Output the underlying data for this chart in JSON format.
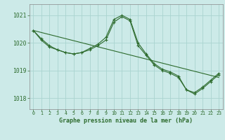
{
  "title": "Graphe pression niveau de la mer (hPa)",
  "background_color": "#cceae8",
  "grid_color": "#aad4d0",
  "line_color": "#2d6b2d",
  "ylim": [
    1017.6,
    1021.4
  ],
  "yticks": [
    1018,
    1019,
    1020,
    1021
  ],
  "xlim": [
    -0.5,
    23.5
  ],
  "xticks": [
    0,
    1,
    2,
    3,
    4,
    5,
    6,
    7,
    8,
    9,
    10,
    11,
    12,
    13,
    14,
    15,
    16,
    17,
    18,
    19,
    20,
    21,
    22,
    23
  ],
  "series": [
    {
      "x": [
        0,
        23
      ],
      "y": [
        1020.45,
        1018.75
      ],
      "marker": false
    },
    {
      "x": [
        0,
        1,
        2,
        3,
        4,
        5,
        6,
        7,
        8,
        9,
        10,
        11,
        12,
        13,
        14,
        15,
        16,
        17,
        18,
        19,
        20,
        21,
        22,
        23
      ],
      "y": [
        1020.45,
        1020.1,
        1019.85,
        1019.75,
        1019.65,
        1019.6,
        1019.65,
        1019.8,
        1019.95,
        1020.2,
        1020.85,
        1021.0,
        1020.85,
        1020.0,
        1019.6,
        1019.25,
        1019.05,
        1018.95,
        1018.8,
        1018.3,
        1018.15,
        1018.35,
        1018.6,
        1018.85
      ],
      "marker": true
    },
    {
      "x": [
        0,
        1,
        2,
        3,
        4,
        5,
        6,
        7,
        8,
        9,
        10,
        11,
        12,
        13,
        14,
        15,
        16,
        17,
        18,
        19,
        20,
        21,
        22,
        23
      ],
      "y": [
        1020.45,
        1020.15,
        1019.9,
        1019.75,
        1019.65,
        1019.6,
        1019.65,
        1019.75,
        1019.9,
        1020.1,
        1020.75,
        1020.95,
        1020.8,
        1019.9,
        1019.55,
        1019.2,
        1019.0,
        1018.9,
        1018.75,
        1018.3,
        1018.2,
        1018.4,
        1018.65,
        1018.9
      ],
      "marker": true
    }
  ]
}
